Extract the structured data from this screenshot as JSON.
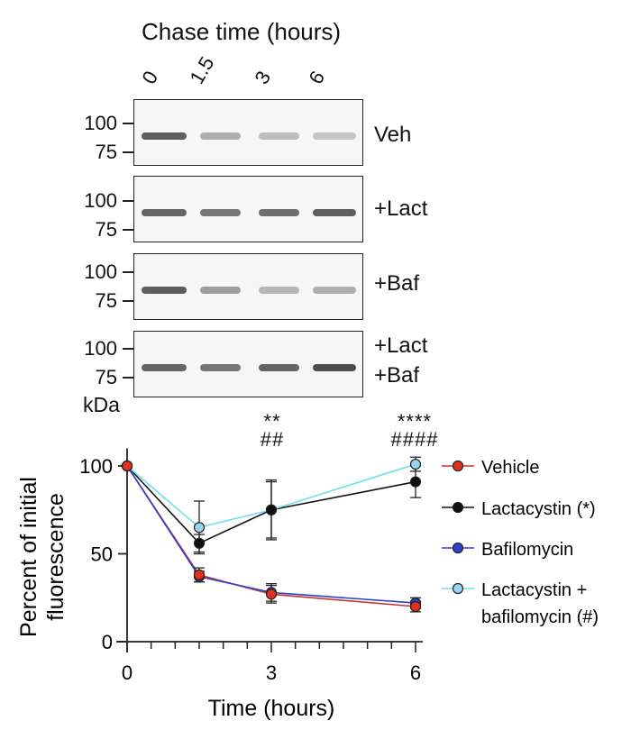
{
  "blot": {
    "title": "Chase time (hours)",
    "lanes": [
      "0",
      "1.5",
      "3",
      "6"
    ],
    "mw_markers": [
      "100",
      "75"
    ],
    "unit": "kDa",
    "panels": [
      {
        "label": "Veh",
        "label2": "",
        "band_intensity": [
          0.85,
          0.35,
          0.25,
          0.2
        ]
      },
      {
        "label": "+Lact",
        "label2": "",
        "band_intensity": [
          0.8,
          0.7,
          0.75,
          0.85
        ]
      },
      {
        "label": "+Baf",
        "label2": "",
        "band_intensity": [
          0.85,
          0.45,
          0.3,
          0.35
        ]
      },
      {
        "label": "+Lact",
        "label2": "+Baf",
        "band_intensity": [
          0.8,
          0.7,
          0.8,
          0.95
        ]
      }
    ]
  },
  "significance": {
    "t3_line1": "**",
    "t3_line2": "##",
    "t6_line1": "****",
    "t6_line2": "####"
  },
  "chart_data": {
    "type": "line",
    "xlabel": "Time (hours)",
    "ylabel": "Percent of initial fluorescence",
    "ylabel_line1": "Percent of initial",
    "ylabel_line2": "fluorescence",
    "xlim": [
      0,
      6
    ],
    "ylim": [
      0,
      110
    ],
    "xticks": [
      "0",
      "3",
      "6"
    ],
    "yticks": [
      "0",
      "50",
      "100"
    ],
    "x": [
      0,
      1.5,
      3,
      6
    ],
    "series": [
      {
        "name": "Vehicle",
        "color": "#e0301e",
        "line": "#c0392b",
        "values": [
          100,
          38,
          27,
          20
        ],
        "err": [
          0,
          4,
          5,
          3
        ]
      },
      {
        "name": "Lactacystin (*)",
        "color": "#111111",
        "line": "#111111",
        "values": [
          100,
          56,
          75,
          91
        ],
        "err": [
          0,
          5,
          17,
          9
        ]
      },
      {
        "name": "Bafilomycin",
        "color": "#2f3fd0",
        "line": "#2f3fd0",
        "values": [
          100,
          37,
          28,
          22
        ],
        "err": [
          0,
          3,
          5,
          3
        ]
      },
      {
        "name": "Lactacystin +",
        "name2": "bafilomycin (#)",
        "color": "#9ad3ee",
        "line": "#6fe0ee",
        "values": [
          100,
          65,
          75,
          101
        ],
        "err": [
          0,
          15,
          16,
          4
        ]
      }
    ]
  }
}
